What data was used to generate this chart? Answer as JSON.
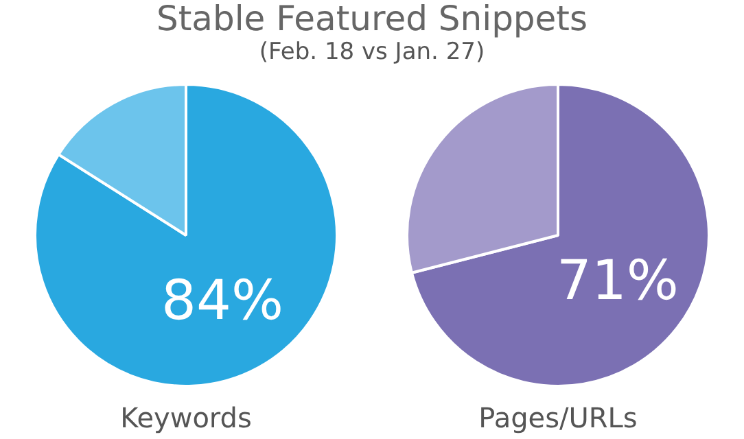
{
  "chart_data": [
    {
      "type": "pie",
      "title": "Stable Featured Snippets",
      "subtitle": "(Feb. 18 vs Jan. 27)",
      "xlabel": "Keywords",
      "categories": [
        null,
        null
      ],
      "values": [
        84,
        16
      ],
      "colors": [
        "#29a8e0",
        "#6cc4ec"
      ],
      "value_labels": [
        "84%",
        null
      ]
    },
    {
      "type": "pie",
      "xlabel": "Pages/URLs",
      "categories": [
        null,
        null
      ],
      "values": [
        71,
        29
      ],
      "colors": [
        "#7b70b3",
        "#a39acb"
      ],
      "value_labels": [
        "71%",
        null
      ]
    }
  ]
}
